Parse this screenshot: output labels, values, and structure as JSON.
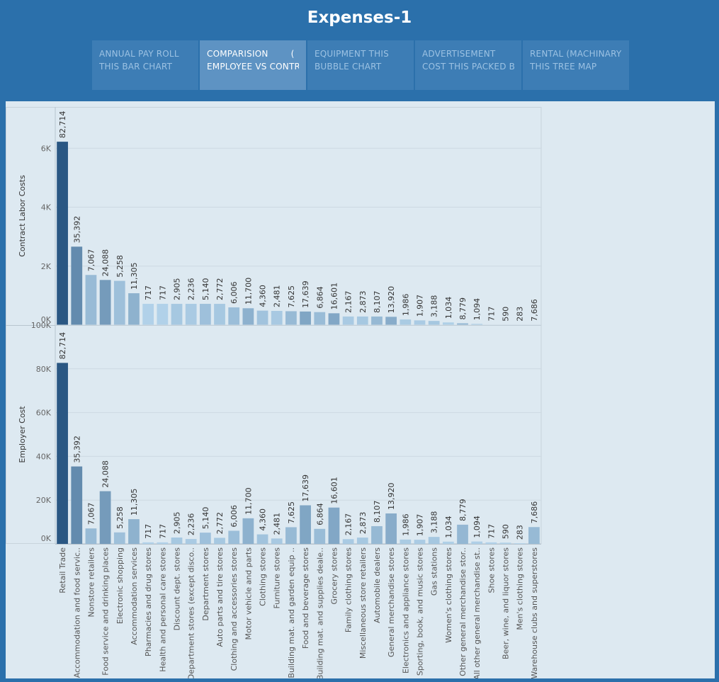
{
  "dashboard": {
    "title": "Expenses-1",
    "tabs": [
      {
        "line1": "ANNUAL PAY ROLL",
        "line2": "THIS BAR CHART",
        "active": false
      },
      {
        "line1": "COMPARISION        (",
        "line2": "EMPLOYEE VS CONTR..",
        "active": true
      },
      {
        "line1": "EQUIPMENT THIS",
        "line2": "BUBBLE CHART",
        "active": false
      },
      {
        "line1": "ADVERTISEMENT",
        "line2": "COST THIS PACKED B..",
        "active": false
      },
      {
        "line1": "RENTAL (MACHINARY)",
        "line2": "THIS TREE MAP",
        "active": false
      }
    ]
  },
  "colors": {
    "background": "#2b70ab",
    "panel": "#dde9f1",
    "bar_dark": "#2a5783",
    "bar_light": "#b9d9ef"
  },
  "chart_data": {
    "type": "bar",
    "categories": [
      "Retail Trade",
      "Accommodation and food servic..",
      "Nonstore retailers",
      "Food service and drinking places",
      "Electronic shopping",
      "Accommodation services",
      "Pharmacies and drug stores",
      "Health and personal care stores",
      "Discount dept. stores",
      "Department stores (except disco..",
      "Department stores",
      "Auto parts and tire stores",
      "Clothing and accessories stores",
      "Motor vehicle and parts",
      "Clothing stores",
      "Furniture stores",
      "Building mat. and garden equip ..",
      "Food and beverage stores",
      "Building mat. and supplies deale..",
      "Grocery stores",
      "Family clothing stores",
      "Miscellaneous store retailers",
      "Automobile dealers",
      "General merchandise stores",
      "Electronics and appliance stores",
      "Sporting, book, and  music stores",
      "Gas stations",
      "Women's clothing stores",
      "Other general merchandise stor..",
      "All other general merchandise st..",
      "Shoe stores",
      "Beer, wine, and liquor stores",
      "Men's clothing stores",
      "Warehouse clubs and superstores"
    ],
    "bar_labels": [
      "82,714",
      "35,392",
      "7,067",
      "24,088",
      "5,258",
      "11,305",
      "717",
      "717",
      "2,905",
      "2,236",
      "5,140",
      "2,772",
      "6,006",
      "11,700",
      "4,360",
      "2,481",
      "7,625",
      "17,639",
      "6,864",
      "16,601",
      "2,167",
      "2,873",
      "8,107",
      "13,920",
      "1,986",
      "1,907",
      "3,188",
      "1,034",
      "8,779",
      "1,094",
      "717",
      "590",
      "283",
      "7,686"
    ],
    "panels": [
      {
        "ylabel": "Contract Labor Costs",
        "ylim": [
          0,
          7400
        ],
        "ticks": [
          0,
          2000,
          4000,
          6000
        ],
        "tick_labels": [
          "0K",
          "2K",
          "4K",
          "6K"
        ],
        "values": [
          6220,
          2660,
          1700,
          1530,
          1500,
          1080,
          720,
          720,
          720,
          720,
          720,
          720,
          600,
          570,
          490,
          480,
          470,
          460,
          440,
          400,
          290,
          290,
          290,
          280,
          190,
          160,
          140,
          90,
          60,
          40,
          10,
          5,
          5,
          5
        ]
      },
      {
        "ylabel": "Employer Cost",
        "ylim": [
          0,
          100000
        ],
        "ticks": [
          0,
          20000,
          40000,
          60000,
          80000,
          100000
        ],
        "tick_labels": [
          "0K",
          "20K",
          "40K",
          "60K",
          "80K",
          "100K"
        ],
        "values": [
          82714,
          35392,
          7067,
          24088,
          5258,
          11305,
          717,
          717,
          2905,
          2236,
          5140,
          2772,
          6006,
          11700,
          4360,
          2481,
          7625,
          17639,
          6864,
          16601,
          2167,
          2873,
          8107,
          13920,
          1986,
          1907,
          3188,
          1034,
          8779,
          1094,
          717,
          590,
          283,
          7686
        ]
      }
    ]
  }
}
